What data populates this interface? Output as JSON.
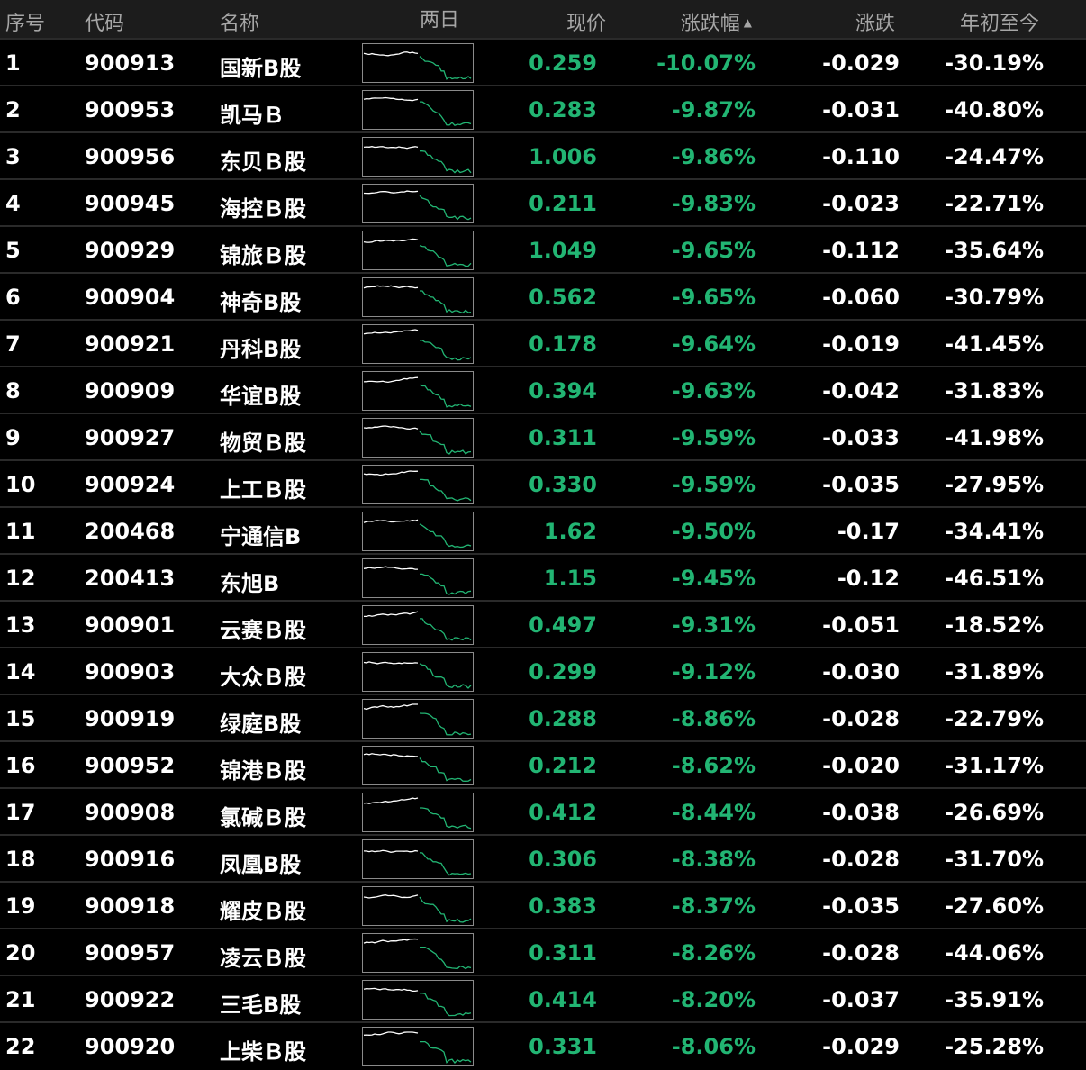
{
  "colors": {
    "down": "#22b573",
    "up": "#e02040",
    "text": "#ffffff",
    "header_bg": "#1c1c1c",
    "bg": "#000000"
  },
  "header": {
    "index": "序号",
    "code": "代码",
    "name": "名称",
    "two_day": "两日",
    "price": "现价",
    "pct": "涨跌幅",
    "change": "涨跌",
    "ytd": "年初至今",
    "sort_icon": "sort-ascending-icon"
  },
  "rows": [
    {
      "idx": "1",
      "code": "900913",
      "name": "国新B股",
      "price": "0.259",
      "pct": "-10.07%",
      "change": "-0.029",
      "ytd": "-30.19%"
    },
    {
      "idx": "2",
      "code": "900953",
      "name": "凯马Ｂ",
      "price": "0.283",
      "pct": "-9.87%",
      "change": "-0.031",
      "ytd": "-40.80%"
    },
    {
      "idx": "3",
      "code": "900956",
      "name": "东贝Ｂ股",
      "price": "1.006",
      "pct": "-9.86%",
      "change": "-0.110",
      "ytd": "-24.47%"
    },
    {
      "idx": "4",
      "code": "900945",
      "name": "海控Ｂ股",
      "price": "0.211",
      "pct": "-9.83%",
      "change": "-0.023",
      "ytd": "-22.71%"
    },
    {
      "idx": "5",
      "code": "900929",
      "name": "锦旅Ｂ股",
      "price": "1.049",
      "pct": "-9.65%",
      "change": "-0.112",
      "ytd": "-35.64%"
    },
    {
      "idx": "6",
      "code": "900904",
      "name": "神奇B股",
      "price": "0.562",
      "pct": "-9.65%",
      "change": "-0.060",
      "ytd": "-30.79%"
    },
    {
      "idx": "7",
      "code": "900921",
      "name": "丹科B股",
      "price": "0.178",
      "pct": "-9.64%",
      "change": "-0.019",
      "ytd": "-41.45%"
    },
    {
      "idx": "8",
      "code": "900909",
      "name": "华谊B股",
      "price": "0.394",
      "pct": "-9.63%",
      "change": "-0.042",
      "ytd": "-31.83%"
    },
    {
      "idx": "9",
      "code": "900927",
      "name": "物贸Ｂ股",
      "price": "0.311",
      "pct": "-9.59%",
      "change": "-0.033",
      "ytd": "-41.98%"
    },
    {
      "idx": "10",
      "code": "900924",
      "name": "上工Ｂ股",
      "price": "0.330",
      "pct": "-9.59%",
      "change": "-0.035",
      "ytd": "-27.95%"
    },
    {
      "idx": "11",
      "code": "200468",
      "name": "宁通信B",
      "price": "1.62",
      "pct": "-9.50%",
      "change": "-0.17",
      "ytd": "-34.41%"
    },
    {
      "idx": "12",
      "code": "200413",
      "name": "东旭B",
      "price": "1.15",
      "pct": "-9.45%",
      "change": "-0.12",
      "ytd": "-46.51%"
    },
    {
      "idx": "13",
      "code": "900901",
      "name": "云赛Ｂ股",
      "price": "0.497",
      "pct": "-9.31%",
      "change": "-0.051",
      "ytd": "-18.52%"
    },
    {
      "idx": "14",
      "code": "900903",
      "name": "大众Ｂ股",
      "price": "0.299",
      "pct": "-9.12%",
      "change": "-0.030",
      "ytd": "-31.89%"
    },
    {
      "idx": "15",
      "code": "900919",
      "name": "绿庭B股",
      "price": "0.288",
      "pct": "-8.86%",
      "change": "-0.028",
      "ytd": "-22.79%"
    },
    {
      "idx": "16",
      "code": "900952",
      "name": "锦港Ｂ股",
      "price": "0.212",
      "pct": "-8.62%",
      "change": "-0.020",
      "ytd": "-31.17%"
    },
    {
      "idx": "17",
      "code": "900908",
      "name": "氯碱Ｂ股",
      "price": "0.412",
      "pct": "-8.44%",
      "change": "-0.038",
      "ytd": "-26.69%"
    },
    {
      "idx": "18",
      "code": "900916",
      "name": "凤凰B股",
      "price": "0.306",
      "pct": "-8.38%",
      "change": "-0.028",
      "ytd": "-31.70%"
    },
    {
      "idx": "19",
      "code": "900918",
      "name": "耀皮Ｂ股",
      "price": "0.383",
      "pct": "-8.37%",
      "change": "-0.035",
      "ytd": "-27.60%"
    },
    {
      "idx": "20",
      "code": "900957",
      "name": "凌云Ｂ股",
      "price": "0.311",
      "pct": "-8.26%",
      "change": "-0.028",
      "ytd": "-44.06%"
    },
    {
      "idx": "21",
      "code": "900922",
      "name": "三毛B股",
      "price": "0.414",
      "pct": "-8.20%",
      "change": "-0.037",
      "ytd": "-35.91%"
    },
    {
      "idx": "22",
      "code": "900920",
      "name": "上柴Ｂ股",
      "price": "0.331",
      "pct": "-8.06%",
      "change": "-0.029",
      "ytd": "-25.28%"
    }
  ]
}
